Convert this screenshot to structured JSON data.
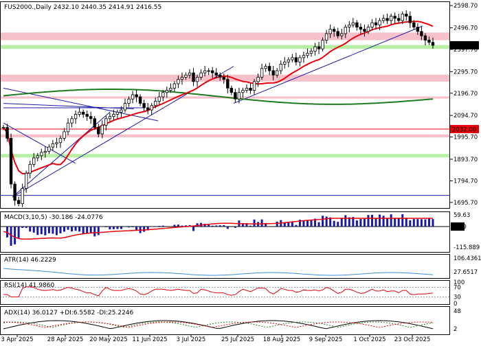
{
  "chart_data": {
    "type": "candlestick",
    "symbol": "FUS2000.",
    "timeframe": "Daily",
    "header": "FUS2000.,Daily  2432.10 2440.35 2414.91 2416.55",
    "ohlc": {
      "open": 2432.1,
      "high": 2440.35,
      "low": 2414.91,
      "close": 2416.55
    },
    "last_price_label": "2416.55",
    "level_label": "2032.00",
    "price_axis": {
      "ticks": [
        1695.7,
        1794.7,
        1893.7,
        1995.7,
        2094.7,
        2196.7,
        2295.7,
        2397.7,
        2496.7,
        2598.7
      ],
      "tick_labels": [
        "1695.70",
        "1794.70",
        "1893.70",
        "1995.70",
        "2094.70",
        "2196.70",
        "2295.70",
        "2397.70",
        "2496.70",
        "2598.70"
      ]
    },
    "x_axis": {
      "labels": [
        "3 Apr 2025",
        "28 Apr 2025",
        "20 May 2025",
        "11 Jun 2025",
        "3 Jul 2025",
        "25 Jul 2025",
        "18 Aug 2025",
        "9 Sep 2025",
        "1 Oct 2025",
        "23 Oct 2025"
      ]
    },
    "zones": [
      {
        "from": 2440,
        "to": 2475,
        "color": "#f7c1cc"
      },
      {
        "from": 2250,
        "to": 2282,
        "color": "#f7c1cc"
      },
      {
        "from": 2400,
        "to": 2418,
        "color": "#b7f0a5"
      },
      {
        "from": 1902,
        "to": 1918,
        "color": "#b7f0a5"
      },
      {
        "from": 1994,
        "to": 2008,
        "color": "#f7c1cc"
      },
      {
        "from": 2172,
        "to": 2182,
        "color": "#f7c1cc"
      }
    ],
    "close_series": [
      2040,
      1990,
      1780,
      1705,
      1690,
      1760,
      1830,
      1870,
      1900,
      1910,
      1925,
      1930,
      1950,
      1965,
      1970,
      1990,
      2020,
      2060,
      2080,
      2100,
      2110,
      2100,
      2090,
      2080,
      2040,
      2010,
      2050,
      2080,
      2090,
      2100,
      2110,
      2120,
      2150,
      2170,
      2190,
      2180,
      2150,
      2130,
      2120,
      2140,
      2160,
      2180,
      2200,
      2210,
      2220,
      2240,
      2260,
      2270,
      2280,
      2290,
      2250,
      2270,
      2290,
      2300,
      2300,
      2290,
      2280,
      2270,
      2260,
      2220,
      2200,
      2170,
      2200,
      2210,
      2220,
      2210,
      2250,
      2270,
      2310,
      2320,
      2300,
      2280,
      2300,
      2330,
      2340,
      2350,
      2360,
      2340,
      2360,
      2370,
      2380,
      2390,
      2410,
      2400,
      2440,
      2470,
      2490,
      2480,
      2460,
      2470,
      2500,
      2510,
      2520,
      2500,
      2490,
      2480,
      2500,
      2520,
      2510,
      2530,
      2540,
      2530,
      2550,
      2540,
      2530,
      2560,
      2550,
      2520,
      2500,
      2480,
      2460,
      2440,
      2430,
      2416.55
    ]
  },
  "indicators": {
    "macd": {
      "label": "MACD(3,10,5) -30.186 -24.0776",
      "ticks": [
        "59.63",
        "0.00",
        "-115.889"
      ]
    },
    "atr": {
      "label": "ATR(14) 46.2229",
      "ticks": [
        "106.4361",
        "27.6517"
      ]
    },
    "rsi": {
      "label": "RSI(14) 41.9860",
      "ticks": [
        "100",
        "70",
        "30",
        "0"
      ]
    },
    "adx": {
      "label": "ADX(14) 36.0127 +DI:6.5582 -DI:25.2246",
      "ticks": [
        "48",
        "2"
      ]
    }
  },
  "colors": {
    "candle": "#000000",
    "ma_fast": "#e8000b",
    "ma_slow": "#1e7b1e",
    "trendline": "#1a1aa8",
    "macd_bar": "#1a1aa8",
    "macd_signal": "#e8000b",
    "level": "#e8000b",
    "label_bg": "#000000",
    "label_red": "#e8000b",
    "indicator_blue": "#3a8fd6"
  }
}
